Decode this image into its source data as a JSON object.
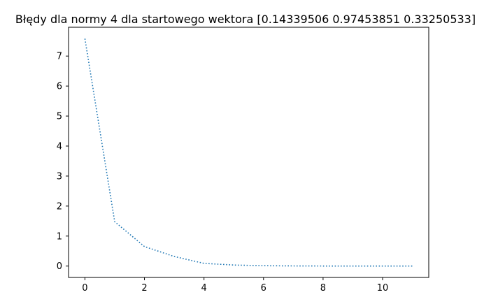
{
  "chart_data": {
    "type": "line",
    "title": "Błędy dla normy 4 dla startowego wektora [0.14339506 0.97453851 0.33250533]",
    "xlabel": "",
    "ylabel": "",
    "x": [
      0,
      1,
      2,
      3,
      4,
      5,
      6,
      7,
      8,
      9,
      10,
      11
    ],
    "series": [
      {
        "values": [
          7.58,
          1.48,
          0.65,
          0.32,
          0.09,
          0.035,
          0.012,
          0.005,
          0.002,
          0.001,
          0.0005,
          0.0002
        ],
        "color": "#1f77b4",
        "line_style": "dotted"
      }
    ],
    "xlim": [
      -0.55,
      11.55
    ],
    "ylim": [
      -0.379,
      7.96
    ],
    "xticks": [
      "0",
      "2",
      "4",
      "6",
      "8",
      "10"
    ],
    "yticks": [
      "0",
      "1",
      "2",
      "3",
      "4",
      "5",
      "6",
      "7"
    ],
    "grid": false,
    "legend": "none"
  }
}
